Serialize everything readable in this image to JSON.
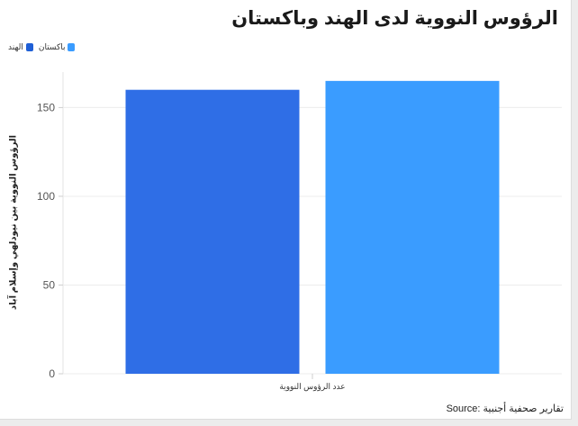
{
  "source_label": "Source: تقارير صحفية أجنبية",
  "chart_data": {
    "type": "bar",
    "title": "الرؤوس النووية لدى الهند وباكستان",
    "categories": [
      "عدد الرؤوس النووية"
    ],
    "series": [
      {
        "name": "الهند",
        "values": [
          160
        ],
        "color": "#2f6ee6"
      },
      {
        "name": "باكستان",
        "values": [
          165
        ],
        "color": "#3a9cff"
      }
    ],
    "ylabel": "الرؤوس النووية بين نيودلهي وإسلام آباد",
    "xlabel": "",
    "ylim": [
      0,
      170
    ],
    "yticks": [
      "0",
      "50",
      "100",
      "150"
    ],
    "grid": true,
    "legend_position": "top-left"
  }
}
